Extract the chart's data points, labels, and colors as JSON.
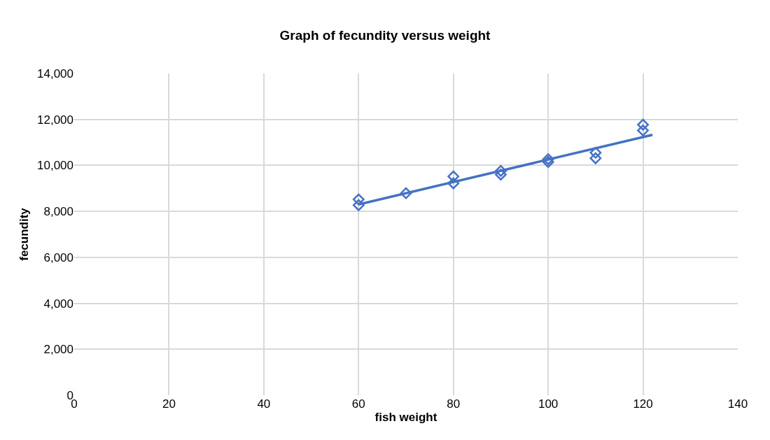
{
  "chart_data": {
    "type": "scatter",
    "title": "Graph of fecundity versus weight",
    "xlabel": "fish weight",
    "ylabel": "fecundity",
    "marker": "diamond",
    "grid": true,
    "legend": false,
    "xlim": [
      0,
      140
    ],
    "xticks": [
      0,
      20,
      40,
      60,
      80,
      100,
      120,
      140
    ],
    "ylim": [
      0,
      14000
    ],
    "yticks": [
      {
        "value": 0,
        "label": "0"
      },
      {
        "value": 2000,
        "label": "2,000"
      },
      {
        "value": 4000,
        "label": "4,000"
      },
      {
        "value": 6000,
        "label": "6,000"
      },
      {
        "value": 8000,
        "label": "8,000"
      },
      {
        "value": 10000,
        "label": "10,000"
      },
      {
        "value": 12000,
        "label": "12,000"
      },
      {
        "value": 14000,
        "label": "14,000"
      }
    ],
    "series": [
      {
        "color": "#4472c4",
        "x": [
          60,
          60,
          70,
          80,
          80,
          90,
          90,
          100,
          100,
          110,
          110,
          120,
          120
        ],
        "values": [
          8520,
          8270,
          8790,
          9520,
          9220,
          9760,
          9600,
          10270,
          10150,
          10550,
          10310,
          11770,
          11520
        ]
      },
      {
        "type": "line",
        "marker": "none",
        "color": "#4472c4",
        "x": [
          60,
          122
        ],
        "values": [
          8300,
          11330
        ]
      }
    ]
  }
}
